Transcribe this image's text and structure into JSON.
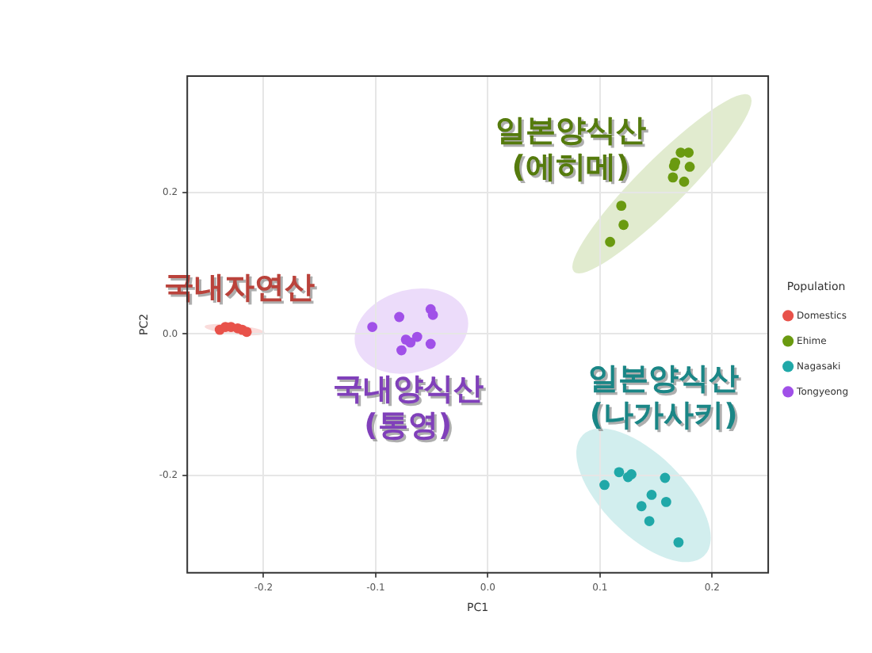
{
  "chart_data": {
    "type": "scatter",
    "xlabel": "PC1",
    "ylabel": "PC2",
    "legend_title": "Population",
    "legend": "right",
    "grid": true,
    "marker": "circle",
    "xlim": [
      -0.268,
      0.25
    ],
    "ylim": [
      -0.337,
      0.364
    ],
    "xticks": [
      -0.2,
      -0.1,
      {
        "value": 0,
        "label": "0.0"
      },
      0.1,
      0.2
    ],
    "yticks": [
      -0.2,
      {
        "value": 0,
        "label": "0.0"
      },
      0.2
    ],
    "series": [
      {
        "name": "Domestics",
        "color": "#e8524a",
        "x": [
          -0.239,
          -0.234,
          -0.229,
          -0.223,
          -0.219,
          -0.215
        ],
        "values": [
          0.006,
          0.01,
          0.01,
          0.008,
          0.006,
          0.003
        ]
      },
      {
        "name": "Ehime",
        "color": "#6a9a10",
        "x": [
          0.109,
          0.121,
          0.119,
          0.165,
          0.175,
          0.166,
          0.167,
          0.172,
          0.179,
          0.18
        ],
        "values": [
          0.13,
          0.154,
          0.181,
          0.221,
          0.215,
          0.237,
          0.242,
          0.256,
          0.256,
          0.236
        ]
      },
      {
        "name": "Nagasaki",
        "color": "#20a8a8",
        "x": [
          0.104,
          0.117,
          0.125,
          0.128,
          0.158,
          0.146,
          0.137,
          0.159,
          0.144,
          0.17
        ],
        "values": [
          -0.213,
          -0.195,
          -0.202,
          -0.198,
          -0.203,
          -0.227,
          -0.243,
          -0.237,
          -0.264,
          -0.294
        ]
      },
      {
        "name": "Tongyeong",
        "color": "#a050e8",
        "x": [
          -0.103,
          -0.079,
          -0.051,
          -0.049,
          -0.073,
          -0.069,
          -0.063,
          -0.077,
          -0.051
        ],
        "values": [
          0.01,
          0.024,
          0.035,
          0.027,
          -0.008,
          -0.012,
          -0.004,
          -0.023,
          -0.014
        ]
      }
    ],
    "annotations": [
      "국내자연산",
      "일본양식산\n(에히메)",
      "일본양식산\n(나가사키)",
      "국내양식산\n(통영)"
    ]
  }
}
